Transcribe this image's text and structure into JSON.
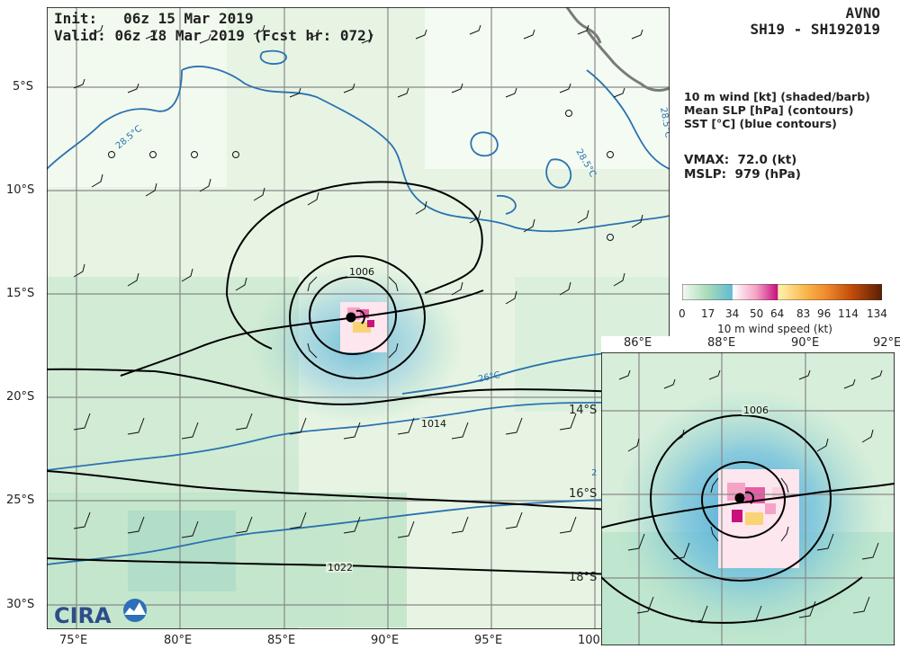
{
  "header": {
    "init_label": "Init:",
    "init_value": "06z 15 Mar 2019",
    "valid_label": "Valid:",
    "valid_value": "06z 18 Mar 2019 (Fcst hr: 072)",
    "model": "AVNO",
    "storm_id": "SH19 - SH192019"
  },
  "legend": {
    "line1": "10 m wind [kt] (shaded/barb)",
    "line2": "Mean SLP [hPa] (contours)",
    "line3": "SST [°C] (blue contours)",
    "vmax_label": "VMAX:",
    "vmax_value": "72.0 (kt)",
    "mslp_label": "MSLP:",
    "mslp_value": "979 (hPa)"
  },
  "colorbar": {
    "title": "10 m wind speed (kt)",
    "ticks": [
      "0",
      "17",
      "34",
      "50",
      "64",
      "83",
      "96",
      "114",
      "134"
    ],
    "colors": [
      "#f4faf2",
      "#a8dcb8",
      "#63b9d5",
      "#ffffff",
      "#f4a3c6",
      "#c9107e",
      "#f9d374",
      "#f08a2e",
      "#c04c08",
      "#5a1e05"
    ]
  },
  "main_map": {
    "lon_ticks": [
      "75°E",
      "80°E",
      "85°E",
      "90°E",
      "95°E",
      "100"
    ],
    "lat_ticks": [
      "5°S",
      "10°S",
      "15°S",
      "20°S",
      "25°S",
      "30°S"
    ],
    "slp_labels": [
      "1006",
      "1014",
      "1022"
    ],
    "sst_labels": [
      "28.5°C",
      "28.5°C",
      "28.5°C",
      "26°C",
      "2"
    ]
  },
  "inset_map": {
    "lon_ticks": [
      "86°E",
      "88°E",
      "90°E",
      "92°E"
    ],
    "lat_ticks": [
      "14°S",
      "16°S",
      "18°S"
    ],
    "slp_labels": [
      "1006"
    ]
  },
  "logo": {
    "text": "CIRA"
  },
  "colors": {
    "slp_contour": "#000000",
    "sst_contour": "#2a72b0",
    "gridline": "#888888",
    "coast": "#7a7a7a"
  }
}
